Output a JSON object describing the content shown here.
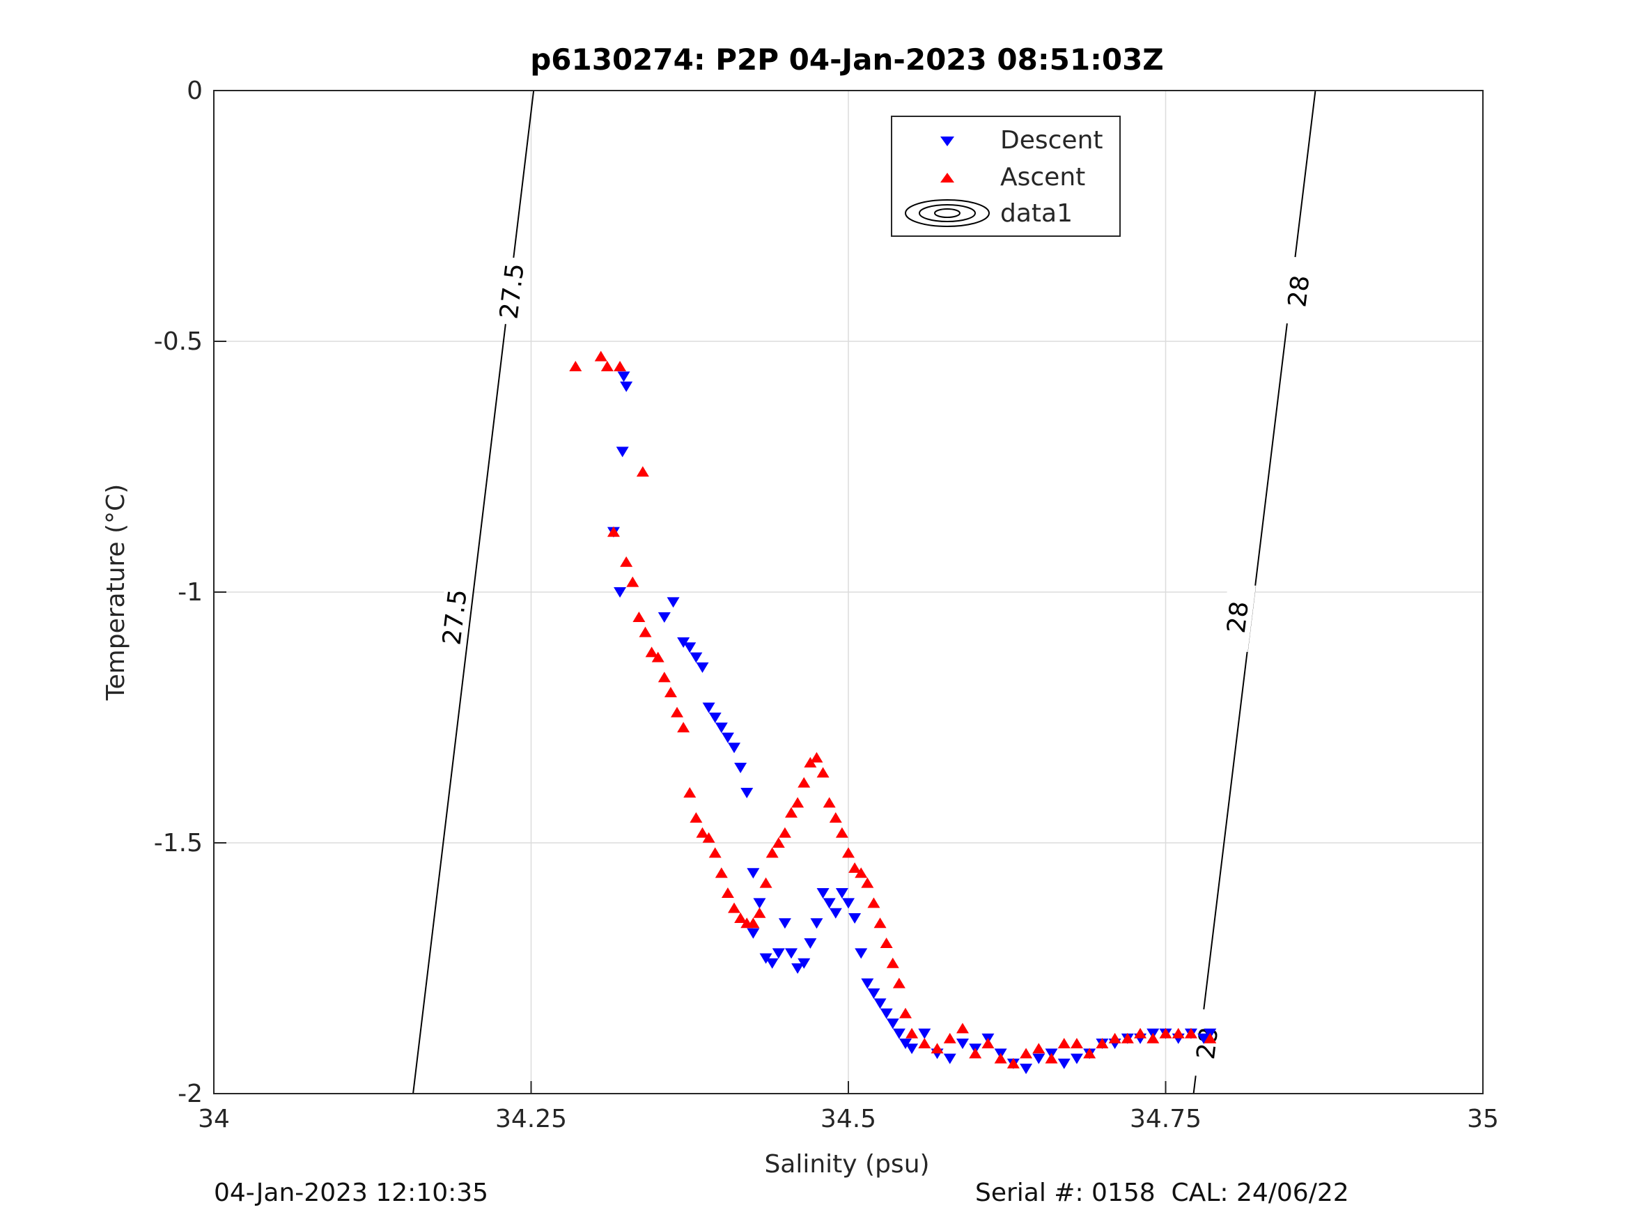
{
  "footer": {
    "left": "04-Jan-2023 12:10:35",
    "right": "Serial #: 0158  CAL: 24/06/22"
  },
  "chart_data": {
    "type": "scatter",
    "title": "p6130274: P2P 04-Jan-2023 08:51:03Z",
    "xlabel": "Salinity (psu)",
    "ylabel": "Temperature (°C)",
    "xlim": [
      34,
      35
    ],
    "ylim": [
      -2,
      0
    ],
    "xticks": [
      34,
      34.25,
      34.5,
      34.75,
      35
    ],
    "xtick_labels": [
      "34",
      "34.25",
      "34.5",
      "34.75",
      "35"
    ],
    "yticks": [
      0,
      -0.5,
      -1,
      -1.5,
      -2
    ],
    "ytick_labels": [
      "0",
      "-0.5",
      "-1",
      "-1.5",
      "-2"
    ],
    "grid": true,
    "legend_position": "top-center",
    "legend": [
      "Descent",
      "Ascent",
      "data1"
    ],
    "series": [
      {
        "name": "Descent",
        "marker": "triangle-down",
        "color": "#0000ff",
        "x": [
          34.323,
          34.325,
          34.322,
          34.315,
          34.32,
          34.355,
          34.362,
          34.37,
          34.375,
          34.38,
          34.385,
          34.39,
          34.395,
          34.4,
          34.405,
          34.41,
          34.415,
          34.42,
          34.425,
          34.43,
          34.425,
          34.435,
          34.44,
          34.445,
          34.45,
          34.455,
          34.46,
          34.465,
          34.47,
          34.475,
          34.48,
          34.485,
          34.49,
          34.495,
          34.5,
          34.505,
          34.51,
          34.515,
          34.52,
          34.525,
          34.53,
          34.535,
          34.54,
          34.545,
          34.55,
          34.56,
          34.57,
          34.58,
          34.59,
          34.6,
          34.61,
          34.62,
          34.63,
          34.64,
          34.65,
          34.66,
          34.67,
          34.68,
          34.69,
          34.7,
          34.71,
          34.72,
          34.73,
          34.74,
          34.75,
          34.76,
          34.77,
          34.78,
          34.785
        ],
        "y": [
          -0.57,
          -0.59,
          -0.72,
          -0.88,
          -1.0,
          -1.05,
          -1.02,
          -1.1,
          -1.11,
          -1.13,
          -1.15,
          -1.23,
          -1.25,
          -1.27,
          -1.29,
          -1.31,
          -1.35,
          -1.4,
          -1.56,
          -1.62,
          -1.68,
          -1.73,
          -1.74,
          -1.72,
          -1.66,
          -1.72,
          -1.75,
          -1.74,
          -1.7,
          -1.66,
          -1.6,
          -1.62,
          -1.64,
          -1.6,
          -1.62,
          -1.65,
          -1.72,
          -1.78,
          -1.8,
          -1.82,
          -1.84,
          -1.86,
          -1.88,
          -1.9,
          -1.91,
          -1.88,
          -1.92,
          -1.93,
          -1.9,
          -1.91,
          -1.89,
          -1.92,
          -1.94,
          -1.95,
          -1.93,
          -1.92,
          -1.94,
          -1.93,
          -1.92,
          -1.9,
          -1.9,
          -1.89,
          -1.89,
          -1.88,
          -1.88,
          -1.89,
          -1.88,
          -1.89,
          -1.88
        ]
      },
      {
        "name": "Ascent",
        "marker": "triangle-up",
        "color": "#ff0000",
        "x": [
          34.285,
          34.305,
          34.31,
          34.32,
          34.338,
          34.315,
          34.325,
          34.33,
          34.335,
          34.34,
          34.345,
          34.35,
          34.355,
          34.36,
          34.365,
          34.37,
          34.375,
          34.38,
          34.385,
          34.39,
          34.395,
          34.4,
          34.405,
          34.41,
          34.415,
          34.42,
          34.425,
          34.43,
          34.435,
          34.44,
          34.445,
          34.45,
          34.455,
          34.46,
          34.465,
          34.47,
          34.475,
          34.48,
          34.485,
          34.49,
          34.495,
          34.5,
          34.505,
          34.51,
          34.515,
          34.52,
          34.525,
          34.53,
          34.535,
          34.54,
          34.545,
          34.55,
          34.56,
          34.57,
          34.58,
          34.59,
          34.6,
          34.61,
          34.62,
          34.63,
          34.64,
          34.65,
          34.66,
          34.67,
          34.68,
          34.69,
          34.7,
          34.71,
          34.72,
          34.73,
          34.74,
          34.75,
          34.76,
          34.77,
          34.785
        ],
        "y": [
          -0.55,
          -0.53,
          -0.55,
          -0.55,
          -0.76,
          -0.88,
          -0.94,
          -0.98,
          -1.05,
          -1.08,
          -1.12,
          -1.13,
          -1.17,
          -1.2,
          -1.24,
          -1.27,
          -1.4,
          -1.45,
          -1.48,
          -1.49,
          -1.52,
          -1.56,
          -1.6,
          -1.63,
          -1.65,
          -1.66,
          -1.66,
          -1.64,
          -1.58,
          -1.52,
          -1.5,
          -1.48,
          -1.44,
          -1.42,
          -1.38,
          -1.34,
          -1.33,
          -1.36,
          -1.42,
          -1.45,
          -1.48,
          -1.52,
          -1.55,
          -1.56,
          -1.58,
          -1.62,
          -1.66,
          -1.7,
          -1.74,
          -1.78,
          -1.84,
          -1.88,
          -1.9,
          -1.91,
          -1.89,
          -1.87,
          -1.92,
          -1.9,
          -1.93,
          -1.94,
          -1.92,
          -1.91,
          -1.93,
          -1.9,
          -1.9,
          -1.92,
          -1.9,
          -1.89,
          -1.89,
          -1.88,
          -1.89,
          -1.88,
          -1.88,
          -1.88,
          -1.89
        ]
      }
    ],
    "contours": [
      {
        "label": "27.5",
        "color": "#000000",
        "points": [
          [
            34.252,
            0
          ],
          [
            34.157,
            -2
          ]
        ],
        "label_positions": [
          [
            34.235,
            -0.4
          ],
          [
            34.19,
            -1.05
          ]
        ]
      },
      {
        "label": "28",
        "color": "#000000",
        "points": [
          [
            34.868,
            0
          ],
          [
            34.772,
            -2
          ]
        ],
        "label_positions": [
          [
            34.855,
            -0.4
          ],
          [
            34.807,
            -1.05
          ],
          [
            34.783,
            -1.9
          ]
        ]
      }
    ]
  }
}
